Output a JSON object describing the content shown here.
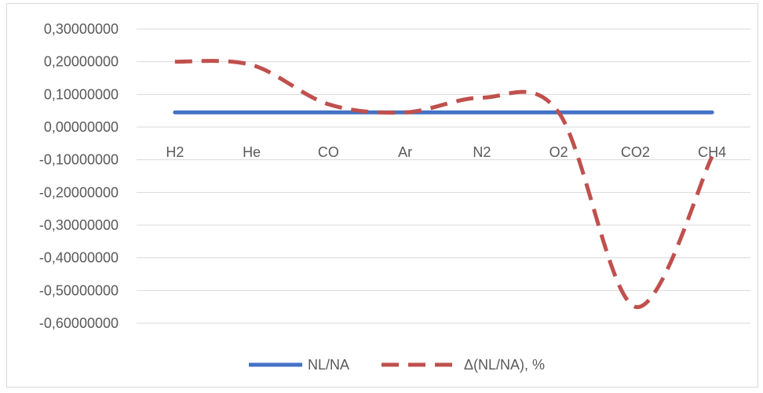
{
  "chart_data": {
    "type": "line",
    "categories": [
      "H2",
      "He",
      "CO",
      "Ar",
      "N2",
      "O2",
      "CO2",
      "CH4"
    ],
    "series": [
      {
        "name": "NL/NA",
        "values": [
          0.045,
          0.045,
          0.045,
          0.045,
          0.045,
          0.045,
          0.045,
          0.045
        ],
        "color": "#4472C4",
        "style": "solid"
      },
      {
        "name": "Δ(NL/NA), %",
        "values": [
          0.2,
          0.19,
          0.07,
          0.045,
          0.09,
          0.045,
          -0.55,
          -0.09
        ],
        "color": "#C0504D",
        "style": "dashed"
      }
    ],
    "yticks": [
      "0,30000000",
      "0,20000000",
      "0,10000000",
      "0,00000000",
      "-0,10000000",
      "-0,20000000",
      "-0,30000000",
      "-0,40000000",
      "-0,50000000",
      "-0,60000000"
    ],
    "ylim": [
      -0.6,
      0.3
    ],
    "grid": true,
    "legend_position": "bottom"
  }
}
